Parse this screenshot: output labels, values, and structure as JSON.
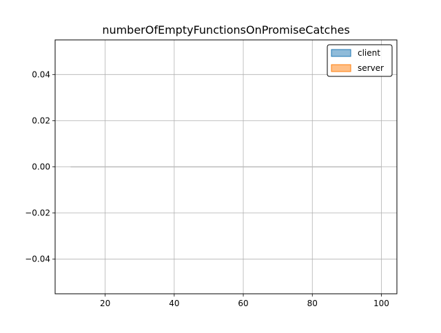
{
  "chart_data": {
    "type": "area",
    "title": "numberOfEmptyFunctionsOnPromiseCatches",
    "xlabel": "",
    "ylabel": "",
    "xlim": [
      5.5,
      104.5
    ],
    "ylim": [
      -0.055,
      0.055
    ],
    "x_ticks": [
      20,
      40,
      60,
      80,
      100
    ],
    "y_ticks": [
      -0.04,
      -0.02,
      0.0,
      0.02,
      0.04
    ],
    "x_tick_labels": [
      "20",
      "40",
      "60",
      "80",
      "100"
    ],
    "y_tick_labels": [
      "−0.04",
      "−0.02",
      "0.00",
      "0.02",
      "0.04"
    ],
    "grid": true,
    "legend_position": "top-right",
    "series": [
      {
        "name": "client",
        "color": "#1f77b4",
        "x": [
          10,
          100
        ],
        "values": [
          0,
          0
        ]
      },
      {
        "name": "server",
        "color": "#ff7f0e",
        "x": [
          10,
          100
        ],
        "values": [
          0,
          0
        ]
      }
    ],
    "baseline_line": {
      "color": "#bbbbbb",
      "x": [
        10,
        100
      ],
      "y": 0
    }
  }
}
